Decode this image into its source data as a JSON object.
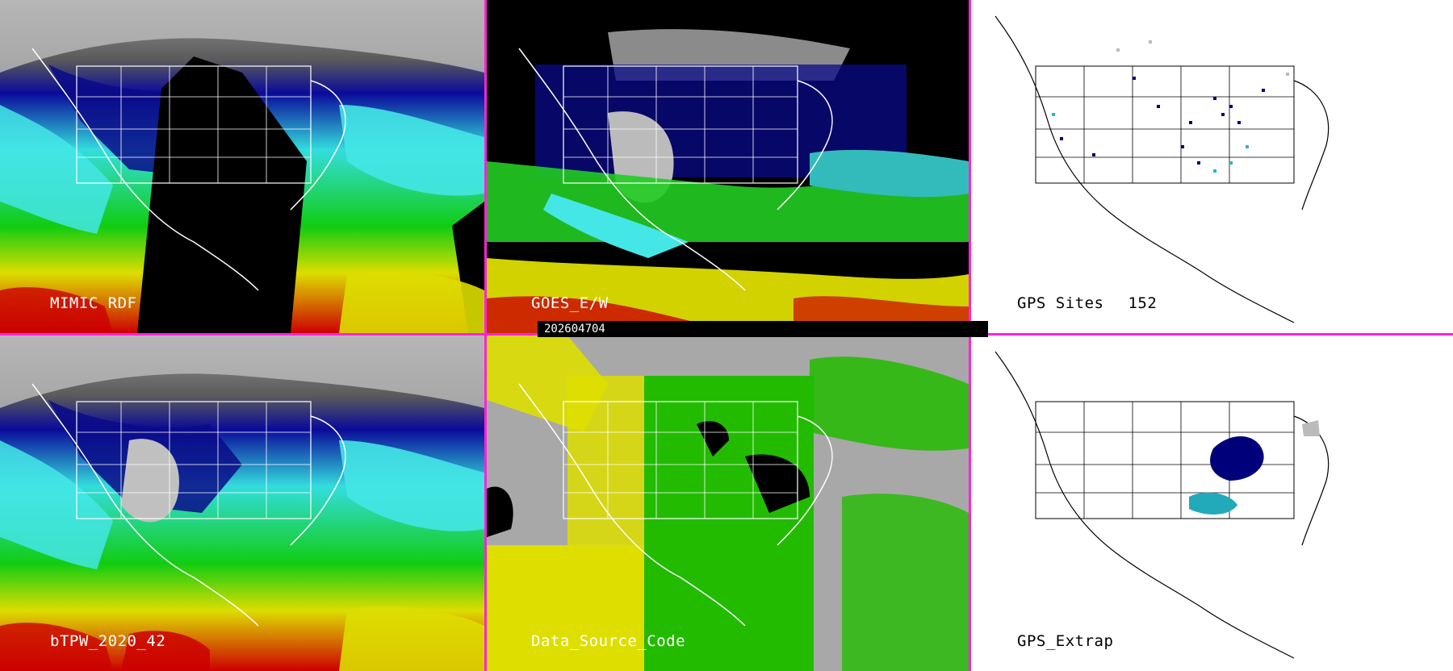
{
  "timestamp": "202604704",
  "panels": [
    {
      "id": "mimic",
      "label": "MIMIC RDF"
    },
    {
      "id": "goes",
      "label": "GOES_E/W"
    },
    {
      "id": "gps-sites",
      "label": "GPS Sites",
      "count": "152"
    },
    {
      "id": "btpw",
      "label": "bTPW_2020_42"
    },
    {
      "id": "source",
      "label": "Data_Source_Code"
    },
    {
      "id": "gps-extrap",
      "label": "GPS_Extrap"
    }
  ],
  "colors": {
    "divider": "#ff22dd",
    "very_low": "#dcdcdc",
    "low": "#00008b",
    "lowmid": "#0000cc",
    "mid": "#33e6e6",
    "midhigh": "#00cc00",
    "high": "#e6e600",
    "very_high": "#cc0000",
    "source_grey": "#a8a8a8",
    "source_yellow": "#dede00",
    "source_green": "#22bb00"
  },
  "icons": [
    "coastline-outline",
    "state-border-grid"
  ]
}
